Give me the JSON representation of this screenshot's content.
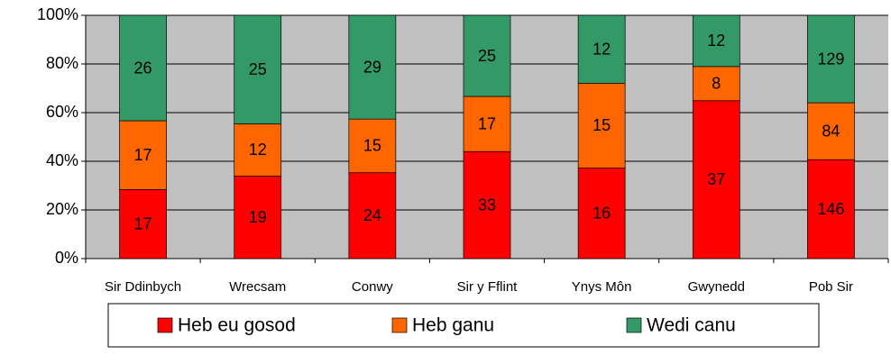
{
  "chart_data": {
    "type": "stacked_percent_bar",
    "categories": [
      "Sir Ddinbych",
      "Wrecsam",
      "Conwy",
      "Sir y Fflint",
      "Ynys Môn",
      "Gwynedd",
      "Pob Sir"
    ],
    "series": [
      {
        "name": "Heb eu gosod",
        "color": "#ff0000",
        "values": [
          17,
          19,
          24,
          33,
          16,
          37,
          146
        ]
      },
      {
        "name": "Heb ganu",
        "color": "#ff6600",
        "values": [
          17,
          12,
          15,
          17,
          15,
          8,
          84
        ]
      },
      {
        "name": "Wedi canu",
        "color": "#339966",
        "values": [
          26,
          25,
          29,
          25,
          12,
          12,
          129
        ]
      }
    ],
    "ylim": [
      0,
      100
    ],
    "yticks": [
      {
        "value": 0,
        "label": "0%"
      },
      {
        "value": 20,
        "label": "20%"
      },
      {
        "value": 40,
        "label": "40%"
      },
      {
        "value": 60,
        "label": "60%"
      },
      {
        "value": 80,
        "label": "80%"
      },
      {
        "value": 100,
        "label": "100%"
      }
    ],
    "grid": true,
    "legend": "bottom"
  }
}
